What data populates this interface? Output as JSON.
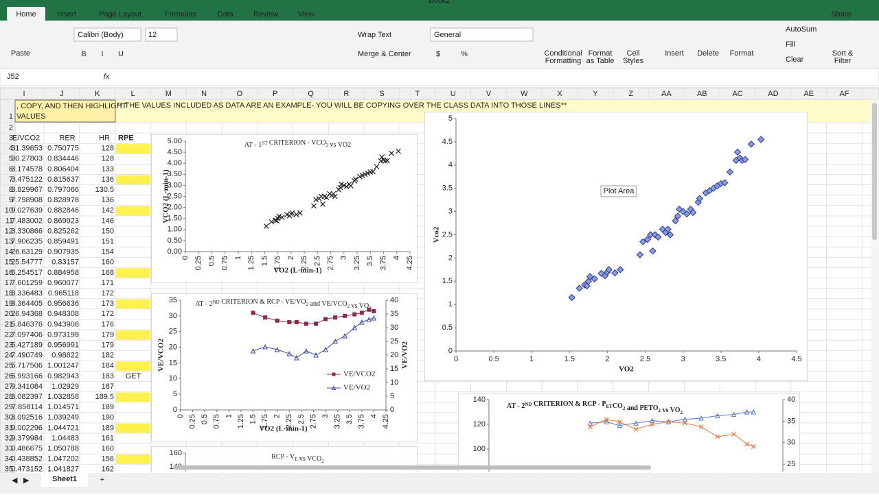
{
  "window_title": "Book2",
  "ribbon": {
    "tabs": [
      "Home",
      "Insert",
      "Page Layout",
      "Formulas",
      "Data",
      "Review",
      "View"
    ],
    "share": "Share",
    "paste": "Paste",
    "font": "Calibri (Body)",
    "font_size": "12",
    "wrap_text": "Wrap Text",
    "merge_center": "Merge & Center",
    "number_format": "General",
    "currency": "$",
    "percent": "%",
    "big_buttons": [
      [
        "Conditional",
        "Formatting"
      ],
      [
        "Format",
        "as Table"
      ],
      [
        "Cell",
        "Styles"
      ],
      [
        "Insert"
      ],
      [
        "Delete"
      ],
      [
        "Format"
      ],
      [
        "Sort &",
        "Filter"
      ]
    ],
    "editing": [
      "AutoSum",
      "Fill",
      "Clear"
    ]
  },
  "formula_bar": {
    "name_box": "J52",
    "fx": "fx"
  },
  "sheet": {
    "columns": [
      "I",
      "J",
      "K",
      "L",
      "M",
      "N",
      "O",
      "P",
      "Q",
      "R",
      "S",
      "T",
      "U",
      "V",
      "W",
      "X",
      "Y",
      "Z",
      "AA",
      "AB",
      "AC",
      "AD",
      "AE",
      "AF"
    ],
    "row_numbers": [
      1,
      2,
      3,
      4,
      5,
      6,
      7,
      8,
      9,
      10,
      11,
      12,
      13,
      14,
      15,
      16,
      17,
      18,
      19,
      20,
      21,
      22,
      23,
      24,
      25,
      26,
      27,
      28,
      29,
      30,
      31,
      32,
      33,
      34,
      35
    ],
    "banner_left": [
      ", COPY, AND THEN HIGHLIGHT",
      "VALUES"
    ],
    "banner": "** THE VALUES INCLUDED AS DATA ARE AN EXAMPLE- YOU WILL BE COPYING OVER THE CLASS DATA INTO THOSE LINES**",
    "headers": [
      "E/VCO2",
      "RER",
      "HR",
      "RPE"
    ],
    "data": [
      [
        "31.39653",
        "0.750775",
        "128"
      ],
      [
        "30.27803",
        "0.834446",
        "128"
      ],
      [
        "3.174578",
        "0.806404",
        "133"
      ],
      [
        "3.475122",
        "0.815637",
        "136"
      ],
      [
        "3.829967",
        "0.797066",
        "130.5"
      ],
      [
        "7.798908",
        "0.828978",
        "136"
      ],
      [
        "9.027639",
        "0.882846",
        "142"
      ],
      [
        "7.483002",
        "0.869923",
        "146"
      ],
      [
        "3.330866",
        "0.825262",
        "150"
      ],
      [
        "7.906235",
        "0.859491",
        "151"
      ],
      [
        "26.63129",
        "0.907935",
        "154"
      ],
      [
        "25.54777",
        "0.83157",
        "160"
      ],
      [
        "6.254517",
        "0.884958",
        "168"
      ],
      [
        "7.601259",
        "0.960077",
        "171"
      ],
      [
        "3.336483",
        "0.965118",
        "172"
      ],
      [
        "3.364405",
        "0.956636",
        "173"
      ],
      [
        "26.94368",
        "0.948308",
        "172"
      ],
      [
        "5.846376",
        "0.943908",
        "176"
      ],
      [
        "7.097406",
        "0.973198",
        "179"
      ],
      [
        "5.427189",
        "0.956991",
        "179"
      ],
      [
        "7.490749",
        "0.98622",
        "182"
      ],
      [
        "5.717506",
        "1.001247",
        "184"
      ],
      [
        "5.993166",
        "0.982943",
        "183"
      ],
      [
        "9.341084",
        "1.02929",
        "187"
      ],
      [
        "3.082397",
        "1.032858",
        "189.5"
      ],
      [
        "7.858114",
        "1.014571",
        "189"
      ],
      [
        "3.092516",
        "1.039249",
        "190"
      ],
      [
        "9.002296",
        "1.044721",
        "189"
      ],
      [
        "9.379984",
        "1.04483",
        "161"
      ],
      [
        "0.486675",
        "1.050788",
        "160"
      ],
      [
        "0.438852",
        "1.047202",
        "156"
      ],
      [
        "0.473152",
        "1.041827",
        "162"
      ]
    ],
    "highlight_rows": [
      4,
      7,
      10,
      16,
      19,
      22,
      25,
      28,
      31,
      34
    ],
    "note": "GET",
    "note_row": 26,
    "tab": "Sheet1"
  },
  "tooltip": "Plot Area",
  "charts": [
    {
      "type": "scatter",
      "x_label": "VO2",
      "y_label": "Vco2",
      "xlim": [
        0,
        4.5
      ],
      "ylim": [
        0,
        5
      ],
      "xticks": [
        0,
        0.5,
        1,
        1.5,
        2,
        2.5,
        3,
        3.5,
        4,
        4.5
      ],
      "yticks": [
        0,
        0.5,
        1,
        1.5,
        2,
        2.5,
        3,
        3.5,
        4,
        4.5,
        5
      ],
      "series": [
        {
          "color": "#8a9be0",
          "marker": "diamond",
          "x": [
            1.53,
            1.63,
            1.7,
            1.73,
            1.75,
            1.77,
            1.83,
            1.92,
            1.97,
            2,
            2.02,
            2.1,
            2.17,
            2.43,
            2.47,
            2.53,
            2.57,
            2.6,
            2.63,
            2.67,
            2.73,
            2.77,
            2.8,
            2.83,
            2.9,
            2.93,
            2.95,
            3,
            3.05,
            3.1,
            3.13,
            3.2,
            3.22,
            3.3,
            3.35,
            3.4,
            3.45,
            3.5,
            3.55,
            3.62,
            3.7,
            3.72,
            3.75,
            3.78,
            3.82,
            3.9,
            4.03
          ],
          "values": [
            1.15,
            1.35,
            1.42,
            1.4,
            1.5,
            1.6,
            1.55,
            1.67,
            1.62,
            1.7,
            1.75,
            1.68,
            1.75,
            2.07,
            2.35,
            2.4,
            2.5,
            2.15,
            2.5,
            2.45,
            2.62,
            2.55,
            2.62,
            2.5,
            2.8,
            2.9,
            3.05,
            3,
            2.95,
            3.05,
            2.98,
            3.2,
            3.28,
            3.4,
            3.45,
            3.5,
            3.55,
            3.6,
            3.62,
            3.85,
            4.1,
            4.28,
            4.15,
            4.1,
            4.12,
            4.45,
            4.55
          ]
        }
      ]
    },
    {
      "type": "scatter",
      "title": [
        "AT - 1",
        "ST",
        " CRITERION - VCO",
        "2",
        " vs VO2"
      ],
      "title_format": [
        "normal",
        "sup",
        "normal",
        "sub",
        "normal"
      ],
      "x_label": "VO2 (L·min-1)",
      "y_label": "VCO2 (L·min-1)",
      "xlim": [
        0,
        4.25
      ],
      "ylim": [
        0,
        5
      ],
      "xtick_rotation": -90,
      "xticks": [
        0,
        0.25,
        0.5,
        0.75,
        1,
        1.25,
        1.5,
        1.75,
        2,
        2.25,
        2.5,
        2.75,
        3,
        3.25,
        3.5,
        3.75,
        4,
        4.25
      ],
      "yticks": [
        {
          "value": 0,
          "label": "0.00"
        },
        {
          "value": 0.5,
          "label": "0.50"
        },
        {
          "value": 1,
          "label": "1.00"
        },
        {
          "value": 1.5,
          "label": "1.50"
        },
        {
          "value": 2,
          "label": "2.00"
        },
        {
          "value": 2.5,
          "label": "2.50"
        },
        {
          "value": 3,
          "label": "3.00"
        },
        {
          "value": 3.5,
          "label": "3.50"
        },
        {
          "value": 4,
          "label": "4.00"
        },
        {
          "value": 4.5,
          "label": "4.50"
        },
        {
          "value": 5,
          "label": "5.00"
        }
      ],
      "series": [
        {
          "color": "#222222",
          "marker": "x",
          "x": [
            1.53,
            1.63,
            1.7,
            1.73,
            1.75,
            1.77,
            1.83,
            1.92,
            1.97,
            2,
            2.02,
            2.1,
            2.17,
            2.43,
            2.47,
            2.53,
            2.57,
            2.6,
            2.63,
            2.67,
            2.73,
            2.77,
            2.8,
            2.83,
            2.9,
            2.93,
            2.95,
            3,
            3.05,
            3.1,
            3.13,
            3.2,
            3.22,
            3.3,
            3.35,
            3.4,
            3.45,
            3.5,
            3.55,
            3.62,
            3.7,
            3.72,
            3.75,
            3.78,
            3.82,
            3.9,
            4.03
          ],
          "values": [
            1.15,
            1.35,
            1.42,
            1.4,
            1.5,
            1.6,
            1.55,
            1.67,
            1.62,
            1.7,
            1.75,
            1.68,
            1.75,
            2.07,
            2.35,
            2.4,
            2.5,
            2.15,
            2.5,
            2.45,
            2.62,
            2.55,
            2.62,
            2.5,
            2.8,
            2.9,
            3.05,
            3,
            2.95,
            3.05,
            2.98,
            3.2,
            3.28,
            3.4,
            3.45,
            3.5,
            3.55,
            3.6,
            3.62,
            3.85,
            4.1,
            4.28,
            4.15,
            4.1,
            4.12,
            4.45,
            4.55
          ]
        }
      ]
    },
    {
      "type": "line",
      "title": [
        "AT - 2",
        "ND",
        " CRITERION & RCP - VE/VO",
        "2",
        " and VE/VCO",
        "2",
        " vs VO",
        "2"
      ],
      "title_format": [
        "normal",
        "sup",
        "normal",
        "sub",
        "normal",
        "sub",
        "normal",
        "sub"
      ],
      "x_label": "VO2 (L·min-1)",
      "y_label": "VE/VCO2",
      "y2_label": "VE/VO2",
      "xlim": [
        0,
        4.25
      ],
      "ylim": [
        0,
        35
      ],
      "y2lim": [
        0,
        40
      ],
      "xtick_rotation": -90,
      "xticks": [
        0,
        0.25,
        0.5,
        0.75,
        1,
        1.25,
        1.5,
        1.75,
        2,
        2.25,
        2.5,
        2.75,
        3,
        3.25,
        3.5,
        3.75,
        4,
        4.25
      ],
      "yticks": [
        0,
        5,
        10,
        15,
        20,
        25,
        30,
        35
      ],
      "y2ticks": [
        0,
        5,
        10,
        15,
        20,
        25,
        30,
        35,
        40
      ],
      "series": [
        {
          "name": "VE/VCO2",
          "color": "#8b2c4c",
          "marker": "square",
          "x": [
            1.5,
            1.75,
            2,
            2.25,
            2.4,
            2.6,
            2.8,
            3,
            3.2,
            3.4,
            3.6,
            3.75,
            3.9,
            4
          ],
          "values": [
            31,
            29.5,
            28.5,
            28,
            28,
            27.5,
            27.5,
            29,
            29.5,
            30,
            30.5,
            31,
            32,
            31.5
          ]
        },
        {
          "name": "VE/VO2",
          "color": "#3f4f9f",
          "marker": "triangle",
          "axis": "y2",
          "x": [
            1.5,
            1.75,
            2,
            2.25,
            2.4,
            2.6,
            2.8,
            3,
            3.2,
            3.4,
            3.6,
            3.75,
            3.9,
            4
          ],
          "values": [
            21.5,
            23,
            22,
            20.5,
            19,
            21.5,
            20,
            22,
            25,
            27,
            30,
            32,
            33,
            33.5
          ]
        }
      ]
    },
    {
      "type": "line",
      "title": [
        "AT - 2",
        "ND",
        " CRITERION & RCP - P",
        "ET",
        "CO",
        "2",
        " and PETO",
        "2",
        " vs VO",
        "2"
      ],
      "title_format": [
        "normal",
        "sup",
        "normal",
        "sub",
        "normal",
        "sub",
        "normal",
        "sub",
        "normal",
        "sub"
      ],
      "xlim": [
        0,
        4.5
      ],
      "ylim": [
        80,
        140
      ],
      "y2lim": [
        22.8,
        40
      ],
      "yticks": [
        100,
        120,
        140
      ],
      "y2ticks": [
        25,
        30,
        35,
        40
      ],
      "series": [
        {
          "color": "#5a74c4",
          "marker": "triangle",
          "x": [
            1.55,
            1.8,
            2,
            2.25,
            2.5,
            2.75,
            3,
            3.25,
            3.5,
            3.75,
            3.95,
            4.05
          ],
          "values": [
            121,
            122,
            119,
            121,
            123,
            122,
            124,
            125,
            127,
            128,
            130,
            130
          ]
        },
        {
          "color": "#e07b45",
          "marker": "x",
          "x": [
            1.55,
            1.8,
            2,
            2.25,
            2.5,
            2.75,
            3,
            3.25,
            3.5,
            3.75,
            3.95,
            4.05
          ],
          "values": [
            118,
            124,
            122,
            116,
            120,
            122,
            121,
            118,
            110,
            112,
            104,
            102
          ]
        }
      ]
    },
    {
      "type": "scatter",
      "title": [
        "RCP - V",
        "E",
        " vs VCO",
        "2"
      ],
      "title_format": [
        "normal",
        "sub",
        "normal",
        "sub"
      ],
      "xlim": [
        0,
        4.25
      ],
      "ylim": [
        80,
        160
      ],
      "yticks": [
        140,
        160
      ],
      "series": []
    }
  ]
}
